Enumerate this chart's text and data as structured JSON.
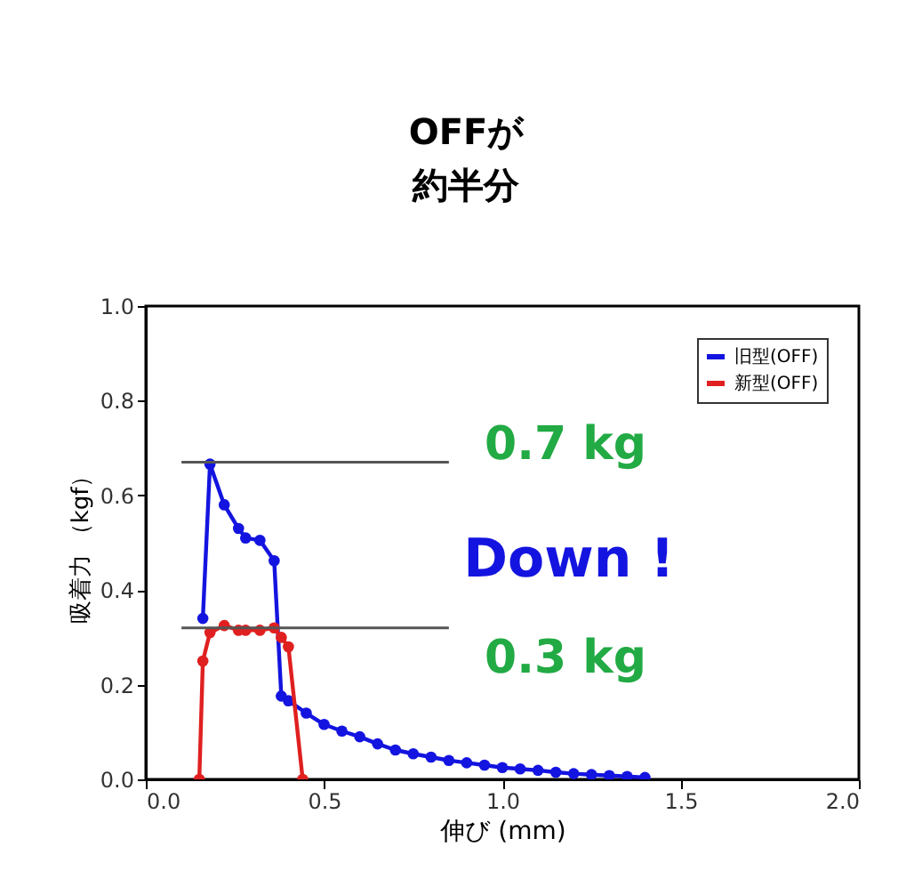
{
  "chart_data": {
    "type": "line",
    "xlabel": "伸び (mm)",
    "ylabel": "吸着力 （kgf）",
    "xlim": [
      0,
      2
    ],
    "xticks": [
      {
        "value": 0,
        "label": "0.0"
      },
      {
        "value": 0.5,
        "label": "0.5"
      },
      {
        "value": 1,
        "label": "1.0"
      },
      {
        "value": 1.5,
        "label": "1.5"
      },
      {
        "value": 2,
        "label": "2.0"
      }
    ],
    "ylim": [
      0,
      1
    ],
    "yticks": [
      {
        "value": 0,
        "label": "0.0"
      },
      {
        "value": 0.2,
        "label": "0.2"
      },
      {
        "value": 0.4,
        "label": "0.4"
      },
      {
        "value": 0.6,
        "label": "0.6"
      },
      {
        "value": 0.8,
        "label": "0.8"
      },
      {
        "value": 1,
        "label": "1.0"
      }
    ],
    "grid": false,
    "legend": "top right",
    "marker": "circle",
    "line_style": "solid",
    "series": [
      {
        "name": "旧型(OFF)",
        "color": "#1414e0",
        "x": [
          0.16,
          0.18,
          0.22,
          0.26,
          0.28,
          0.32,
          0.36,
          0.38,
          0.4,
          0.45,
          0.5,
          0.55,
          0.6,
          0.65,
          0.7,
          0.75,
          0.8,
          0.85,
          0.9,
          0.95,
          1.0,
          1.05,
          1.1,
          1.15,
          1.2,
          1.25,
          1.3,
          1.35,
          1.4
        ],
        "values": [
          0.34,
          0.666,
          0.58,
          0.53,
          0.51,
          0.505,
          0.462,
          0.176,
          0.166,
          0.14,
          0.116,
          0.102,
          0.09,
          0.075,
          0.062,
          0.054,
          0.047,
          0.04,
          0.035,
          0.03,
          0.025,
          0.022,
          0.019,
          0.015,
          0.012,
          0.01,
          0.008,
          0.006,
          0.004
        ]
      },
      {
        "name": "新型(OFF)",
        "color": "#e02020",
        "x": [
          0.15,
          0.16,
          0.18,
          0.22,
          0.26,
          0.28,
          0.32,
          0.36,
          0.38,
          0.4,
          0.44
        ],
        "values": [
          0.0,
          0.25,
          0.31,
          0.325,
          0.315,
          0.315,
          0.315,
          0.32,
          0.3,
          0.28,
          0.0
        ]
      },
      {
        "type": "line",
        "color": "#555555",
        "marker": "none",
        "x": [
          0.1,
          0.85
        ],
        "values": [
          0.67,
          0.67
        ]
      },
      {
        "type": "line",
        "color": "#555555",
        "marker": "none",
        "x": [
          0.1,
          0.85
        ],
        "values": [
          0.32,
          0.32
        ]
      }
    ],
    "annotations": [
      "OFFが",
      "約半分",
      "0.7 kg",
      "Down !",
      "0.3 kg"
    ]
  }
}
